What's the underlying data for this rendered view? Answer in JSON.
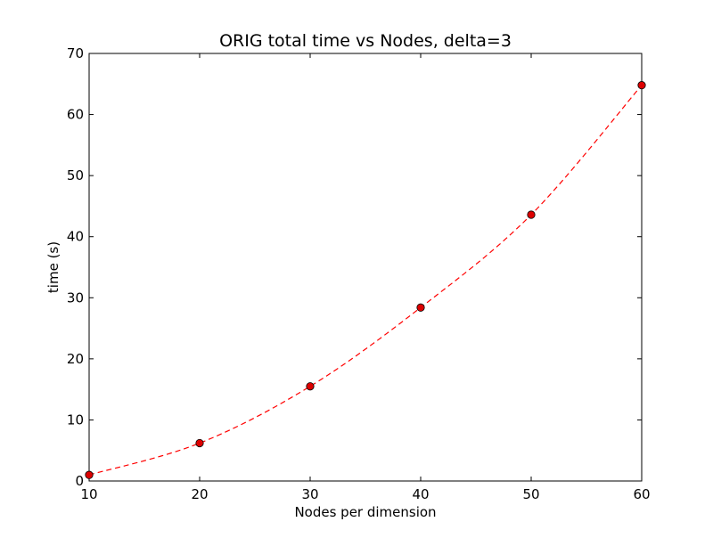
{
  "chart_data": {
    "type": "line",
    "title": "ORIG total time vs Nodes, delta=3",
    "xlabel": "Nodes per dimension",
    "ylabel": "time (s)",
    "xlim": [
      10,
      60
    ],
    "ylim": [
      0,
      70
    ],
    "x_ticks": [
      10,
      20,
      30,
      40,
      50,
      60
    ],
    "y_ticks": [
      0,
      10,
      20,
      30,
      40,
      50,
      60,
      70
    ],
    "x_tick_labels": [
      "10",
      "20",
      "30",
      "40",
      "50",
      "60"
    ],
    "y_tick_labels": [
      "0",
      "10",
      "20",
      "30",
      "40",
      "50",
      "60",
      "70"
    ],
    "grid": false,
    "series": [
      {
        "x": [
          10,
          20,
          30,
          40,
          50,
          60
        ],
        "values": [
          1.0,
          6.2,
          15.5,
          28.4,
          43.6,
          64.8
        ],
        "line_style": "dashed",
        "marker": "circle",
        "line_color": "#ff0000",
        "marker_color": "#dd0000"
      }
    ]
  }
}
